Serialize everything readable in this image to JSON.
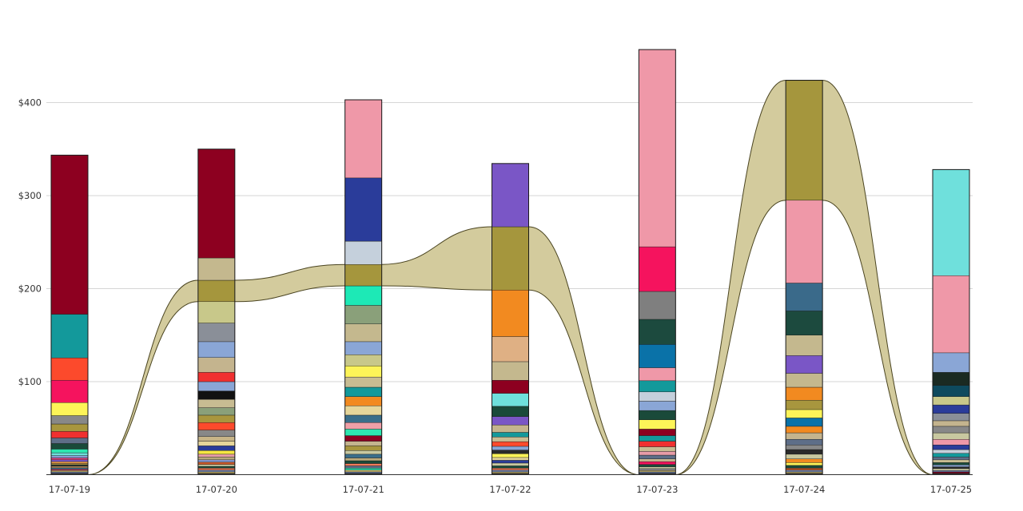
{
  "chart_data": {
    "type": "bar",
    "stacked": true,
    "categories": [
      "17-07-19",
      "17-07-20",
      "17-07-21",
      "17-07-22",
      "17-07-23",
      "17-07-24",
      "17-07-25"
    ],
    "ylim": [
      0,
      410
    ],
    "yticks": [
      100,
      200,
      300,
      400
    ],
    "ytick_labels": [
      "$100",
      "$200",
      "$300",
      "$400"
    ],
    "grid": true,
    "highlight": {
      "color": "#a5963d",
      "ribbon_color": "#d3cb9d",
      "values": [
        0,
        23,
        23,
        68,
        0,
        129,
        0
      ]
    },
    "bars": [
      {
        "category": "17-07-19",
        "segments": [
          {
            "value": 1.5,
            "color": "#2a2a2a"
          },
          {
            "value": 1.5,
            "color": "#6b7fa8"
          },
          {
            "value": 1.5,
            "color": "#c8b46a"
          },
          {
            "value": 1.5,
            "color": "#b4345c"
          },
          {
            "value": 1.5,
            "color": "#3a6e8a"
          },
          {
            "value": 1.5,
            "color": "#e0a86a"
          },
          {
            "value": 1.5,
            "color": "#22332c"
          },
          {
            "value": 1.5,
            "color": "#9e8a44"
          },
          {
            "value": 2,
            "color": "#f2a24a"
          },
          {
            "value": 2,
            "color": "#7a56c6"
          },
          {
            "value": 2,
            "color": "#e64080"
          },
          {
            "value": 2.5,
            "color": "#8a9cd4"
          },
          {
            "value": 3,
            "color": "#6fe0dc"
          },
          {
            "value": 4,
            "color": "#2ee6b0"
          },
          {
            "value": 6,
            "color": "#1a4a3a"
          },
          {
            "value": 6,
            "color": "#5e6e88"
          },
          {
            "value": 7,
            "color": "#f03030"
          },
          {
            "value": 8,
            "color": "#a8963e"
          },
          {
            "value": 9,
            "color": "#888888"
          },
          {
            "value": 14,
            "color": "#fdf458"
          },
          {
            "value": 24,
            "color": "#f5135e"
          },
          {
            "value": 24,
            "color": "#fc4a2c"
          },
          {
            "value": 47,
            "color": "#13999b"
          },
          {
            "value": 171,
            "color": "#8d0020"
          }
        ]
      },
      {
        "category": "17-07-20",
        "segments": [
          {
            "value": 1.5,
            "color": "#2a2a2a"
          },
          {
            "value": 1.5,
            "color": "#d8c06a"
          },
          {
            "value": 2,
            "color": "#6b7fa8"
          },
          {
            "value": 2,
            "color": "#f07a5a"
          },
          {
            "value": 2,
            "color": "#1a4a3a"
          },
          {
            "value": 2,
            "color": "#c8c8a0"
          },
          {
            "value": 2.5,
            "color": "#c85a2a"
          },
          {
            "value": 2.5,
            "color": "#8a9cd4"
          },
          {
            "value": 3,
            "color": "#b9a87a"
          },
          {
            "value": 3,
            "color": "#e89ca8"
          },
          {
            "value": 4,
            "color": "#f5e642"
          },
          {
            "value": 5,
            "color": "#2a3c9a"
          },
          {
            "value": 5,
            "color": "#e6d69a"
          },
          {
            "value": 5,
            "color": "#c7b487"
          },
          {
            "value": 7,
            "color": "#888888"
          },
          {
            "value": 8,
            "color": "#fc4a2c"
          },
          {
            "value": 8,
            "color": "#a8963e"
          },
          {
            "value": 8,
            "color": "#8aa07a"
          },
          {
            "value": 9,
            "color": "#c8bc92"
          },
          {
            "value": 9,
            "color": "#111111"
          },
          {
            "value": 10,
            "color": "#8aa6d6"
          },
          {
            "value": 10,
            "color": "#f03030"
          },
          {
            "value": 16,
            "color": "#c4b48e"
          },
          {
            "value": 17,
            "color": "#8aa6d6"
          },
          {
            "value": 20,
            "color": "#8a8f98"
          },
          {
            "value": 23,
            "color": "#c8c88a"
          },
          {
            "value": 23,
            "color": "#a5963d",
            "highlight": true
          },
          {
            "value": 24,
            "color": "#c4b88e"
          },
          {
            "value": 117,
            "color": "#8d0020"
          }
        ]
      },
      {
        "category": "17-07-21",
        "segments": [
          {
            "value": 1.5,
            "color": "#2a2a2a"
          },
          {
            "value": 1.5,
            "color": "#6b7fa8"
          },
          {
            "value": 2,
            "color": "#c8b46a"
          },
          {
            "value": 2,
            "color": "#2ee6b0"
          },
          {
            "value": 2.5,
            "color": "#5e6e88"
          },
          {
            "value": 2.5,
            "color": "#f07a5a"
          },
          {
            "value": 3,
            "color": "#1a4a3a"
          },
          {
            "value": 3,
            "color": "#b9a87a"
          },
          {
            "value": 4,
            "color": "#3a6e8a"
          },
          {
            "value": 4,
            "color": "#c8c8a0"
          },
          {
            "value": 5,
            "color": "#a8963e"
          },
          {
            "value": 5,
            "color": "#c4b48e"
          },
          {
            "value": 6,
            "color": "#8d0020"
          },
          {
            "value": 7,
            "color": "#2ee6b0"
          },
          {
            "value": 7,
            "color": "#f0a0a8"
          },
          {
            "value": 8,
            "color": "#3a6e8a"
          },
          {
            "value": 10,
            "color": "#e6d69a"
          },
          {
            "value": 10,
            "color": "#f28a20"
          },
          {
            "value": 10,
            "color": "#13999b"
          },
          {
            "value": 11,
            "color": "#c8bc92"
          },
          {
            "value": 12,
            "color": "#fdf458"
          },
          {
            "value": 12,
            "color": "#c8c88a"
          },
          {
            "value": 14,
            "color": "#8aa6d6"
          },
          {
            "value": 19,
            "color": "#c4b88e"
          },
          {
            "value": 20,
            "color": "#8aa07a"
          },
          {
            "value": 21,
            "color": "#1de9b6"
          },
          {
            "value": 23,
            "color": "#a5963d",
            "highlight": true
          },
          {
            "value": 25,
            "color": "#c5d0dc"
          },
          {
            "value": 68,
            "color": "#2a3c9a"
          },
          {
            "value": 84,
            "color": "#ef98a8"
          }
        ]
      },
      {
        "category": "17-07-22",
        "segments": [
          {
            "value": 1.5,
            "color": "#2a2a2a"
          },
          {
            "value": 1.5,
            "color": "#c8b46a"
          },
          {
            "value": 2,
            "color": "#6b7fa8"
          },
          {
            "value": 2,
            "color": "#f07a5a"
          },
          {
            "value": 2.5,
            "color": "#1a4a3a"
          },
          {
            "value": 3,
            "color": "#c8c8a0"
          },
          {
            "value": 3,
            "color": "#2a3c9a"
          },
          {
            "value": 3,
            "color": "#e6d69a"
          },
          {
            "value": 4,
            "color": "#fdf458"
          },
          {
            "value": 4,
            "color": "#2a2a2a"
          },
          {
            "value": 4,
            "color": "#8aa6d6"
          },
          {
            "value": 5,
            "color": "#fc4a2c"
          },
          {
            "value": 5,
            "color": "#c8bc92"
          },
          {
            "value": 5,
            "color": "#13999b"
          },
          {
            "value": 8,
            "color": "#c4b48e"
          },
          {
            "value": 9,
            "color": "#7a56c6"
          },
          {
            "value": 11,
            "color": "#1a4a3a"
          },
          {
            "value": 14,
            "color": "#6fe0dc"
          },
          {
            "value": 14,
            "color": "#8d0020"
          },
          {
            "value": 20,
            "color": "#c4b88e"
          },
          {
            "value": 27,
            "color": "#dfb084"
          },
          {
            "value": 50,
            "color": "#f28a20"
          },
          {
            "value": 68,
            "color": "#a5963d",
            "highlight": true
          },
          {
            "value": 68,
            "color": "#7a56c6"
          }
        ]
      },
      {
        "category": "17-07-23",
        "segments": [
          {
            "value": 1.5,
            "color": "#2a2a2a"
          },
          {
            "value": 1.5,
            "color": "#6b7fa8"
          },
          {
            "value": 1.5,
            "color": "#c8b46a"
          },
          {
            "value": 2,
            "color": "#888888"
          },
          {
            "value": 2,
            "color": "#c8c8a0"
          },
          {
            "value": 2.5,
            "color": "#1a4a3a"
          },
          {
            "value": 3,
            "color": "#f5135e"
          },
          {
            "value": 3,
            "color": "#c4b48e"
          },
          {
            "value": 4,
            "color": "#5e6e88"
          },
          {
            "value": 4,
            "color": "#e89ca8"
          },
          {
            "value": 5,
            "color": "#c8bc92"
          },
          {
            "value": 6,
            "color": "#f03030"
          },
          {
            "value": 6,
            "color": "#13999b"
          },
          {
            "value": 7,
            "color": "#8d0020"
          },
          {
            "value": 10,
            "color": "#fdf458"
          },
          {
            "value": 10,
            "color": "#1a4a3a"
          },
          {
            "value": 10,
            "color": "#8aa6d6"
          },
          {
            "value": 10,
            "color": "#c5d0dc"
          },
          {
            "value": 12,
            "color": "#13999b"
          },
          {
            "value": 14,
            "color": "#ef98a8"
          },
          {
            "value": 25,
            "color": "#0a72a8"
          },
          {
            "value": 27,
            "color": "#1c4a3e"
          },
          {
            "value": 30,
            "color": "#7f7f7f"
          },
          {
            "value": 48,
            "color": "#f5135e"
          },
          {
            "value": 212,
            "color": "#ef98a8"
          }
        ]
      },
      {
        "category": "17-07-24",
        "segments": [
          {
            "value": 1.5,
            "color": "#2a2a2a"
          },
          {
            "value": 1.5,
            "color": "#c8b46a"
          },
          {
            "value": 2,
            "color": "#6b7fa8"
          },
          {
            "value": 2,
            "color": "#c85a2a"
          },
          {
            "value": 3,
            "color": "#1a4a3a"
          },
          {
            "value": 3,
            "color": "#fdf458"
          },
          {
            "value": 4,
            "color": "#f28a20"
          },
          {
            "value": 5,
            "color": "#c8c8a0"
          },
          {
            "value": 5,
            "color": "#2a2a2a"
          },
          {
            "value": 5,
            "color": "#888888"
          },
          {
            "value": 6,
            "color": "#5e6e88"
          },
          {
            "value": 7,
            "color": "#c4b48e"
          },
          {
            "value": 7,
            "color": "#f28a20"
          },
          {
            "value": 9,
            "color": "#0a72a8"
          },
          {
            "value": 9,
            "color": "#fdf458"
          },
          {
            "value": 10,
            "color": "#a8963e"
          },
          {
            "value": 14,
            "color": "#f28a20"
          },
          {
            "value": 15,
            "color": "#c4b88e"
          },
          {
            "value": 19,
            "color": "#7a56c6"
          },
          {
            "value": 22,
            "color": "#c4b88e"
          },
          {
            "value": 26,
            "color": "#1c4a3e"
          },
          {
            "value": 30,
            "color": "#3a6a8a"
          },
          {
            "value": 89,
            "color": "#ef98a8"
          },
          {
            "value": 129,
            "color": "#a5963d",
            "highlight": true
          }
        ]
      },
      {
        "category": "17-07-25",
        "segments": [
          {
            "value": 1.5,
            "color": "#2a2a2a"
          },
          {
            "value": 1.5,
            "color": "#8d0020"
          },
          {
            "value": 1.5,
            "color": "#6b7fa8"
          },
          {
            "value": 2,
            "color": "#c8c8a0"
          },
          {
            "value": 2,
            "color": "#2a2a2a"
          },
          {
            "value": 2,
            "color": "#8aa6d6"
          },
          {
            "value": 2.5,
            "color": "#1a4a3a"
          },
          {
            "value": 3,
            "color": "#c8bc92"
          },
          {
            "value": 3,
            "color": "#5e6e88"
          },
          {
            "value": 4,
            "color": "#13999b"
          },
          {
            "value": 4,
            "color": "#c5d0dc"
          },
          {
            "value": 5,
            "color": "#2a3c9a"
          },
          {
            "value": 6,
            "color": "#ef98a8"
          },
          {
            "value": 7,
            "color": "#c8c8a0"
          },
          {
            "value": 7,
            "color": "#888888"
          },
          {
            "value": 6,
            "color": "#c4b48e"
          },
          {
            "value": 8,
            "color": "#8a8f98"
          },
          {
            "value": 9,
            "color": "#2a3c9a"
          },
          {
            "value": 9,
            "color": "#c8c88a"
          },
          {
            "value": 12,
            "color": "#0e4a5e"
          },
          {
            "value": 14,
            "color": "#1a2a22"
          },
          {
            "value": 21,
            "color": "#8aa6d6"
          },
          {
            "value": 83,
            "color": "#ef98a8"
          },
          {
            "value": 114,
            "color": "#6fe0dc"
          }
        ]
      }
    ]
  }
}
